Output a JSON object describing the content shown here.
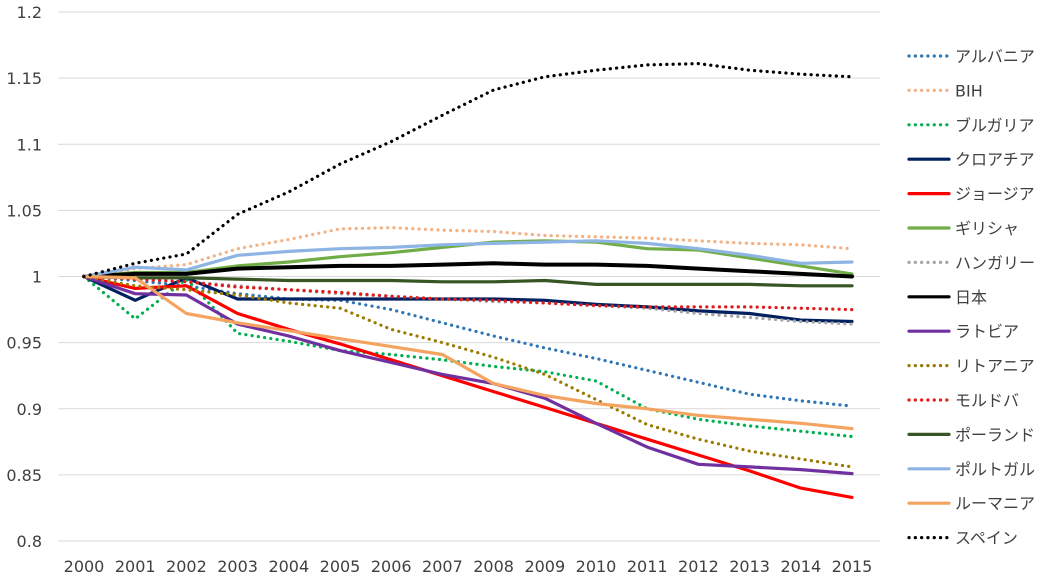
{
  "chart_data": {
    "type": "line",
    "title": "",
    "xlabel": "",
    "ylabel": "",
    "x": [
      "2000",
      "2001",
      "2002",
      "2003",
      "2004",
      "2005",
      "2006",
      "2007",
      "2008",
      "2009",
      "2010",
      "2011",
      "2012",
      "2013",
      "2014",
      "2015"
    ],
    "ylim": [
      0.8,
      1.2
    ],
    "yticks": [
      0.8,
      0.85,
      0.9,
      0.95,
      1,
      1.05,
      1.1,
      1.15,
      1.2
    ],
    "ytick_labels": [
      "0.8",
      "0.85",
      "0.9",
      "0.95",
      "1",
      "1.05",
      "1.1",
      "1.15",
      "1.2"
    ],
    "grid": "horizontal",
    "legend": "right",
    "series": [
      {
        "name": "アルバニア",
        "color": "#2e75b6",
        "style": "dotted",
        "values": [
          1.0,
          0.997,
          0.993,
          0.987,
          0.983,
          0.982,
          0.975,
          0.965,
          0.955,
          0.946,
          0.938,
          0.929,
          0.92,
          0.911,
          0.906,
          0.902
        ]
      },
      {
        "name": "BIH",
        "color": "#f4b183",
        "style": "dotted",
        "values": [
          1.0,
          1.006,
          1.009,
          1.021,
          1.028,
          1.036,
          1.037,
          1.035,
          1.034,
          1.031,
          1.03,
          1.029,
          1.027,
          1.025,
          1.024,
          1.021
        ]
      },
      {
        "name": "ブルガリア",
        "color": "#00b050",
        "style": "dotted",
        "values": [
          1.0,
          0.968,
          0.998,
          0.957,
          0.951,
          0.944,
          0.941,
          0.937,
          0.932,
          0.928,
          0.921,
          0.9,
          0.892,
          0.887,
          0.883,
          0.879
        ]
      },
      {
        "name": "クロアチア",
        "color": "#002060",
        "style": "solid",
        "values": [
          1.0,
          0.982,
          0.999,
          0.983,
          0.983,
          0.983,
          0.983,
          0.983,
          0.983,
          0.982,
          0.979,
          0.977,
          0.974,
          0.972,
          0.967,
          0.966
        ]
      },
      {
        "name": "ジョージア",
        "color": "#ff0000",
        "style": "solid",
        "values": [
          1.0,
          0.991,
          0.993,
          0.972,
          0.96,
          0.949,
          0.937,
          0.925,
          0.913,
          0.901,
          0.889,
          0.877,
          0.865,
          0.853,
          0.84,
          0.833
        ]
      },
      {
        "name": "ギリシャ",
        "color": "#70ad47",
        "style": "solid",
        "values": [
          1.0,
          1.003,
          1.003,
          1.008,
          1.011,
          1.015,
          1.018,
          1.022,
          1.026,
          1.027,
          1.026,
          1.021,
          1.02,
          1.014,
          1.008,
          1.002
        ]
      },
      {
        "name": "ハンガリー",
        "color": "#a5a5a5",
        "style": "dotted",
        "values": [
          1.0,
          0.998,
          0.996,
          0.993,
          0.99,
          0.987,
          0.985,
          0.983,
          0.981,
          0.98,
          0.978,
          0.976,
          0.972,
          0.969,
          0.966,
          0.964
        ]
      },
      {
        "name": "日本",
        "color": "#000000",
        "style": "solid",
        "values": [
          1.0,
          1.002,
          1.002,
          1.006,
          1.007,
          1.008,
          1.008,
          1.009,
          1.01,
          1.009,
          1.009,
          1.008,
          1.006,
          1.004,
          1.002,
          1.0
        ]
      },
      {
        "name": "ラトビア",
        "color": "#7030a0",
        "style": "solid",
        "values": [
          1.0,
          0.987,
          0.986,
          0.964,
          0.955,
          0.944,
          0.935,
          0.926,
          0.919,
          0.908,
          0.889,
          0.871,
          0.858,
          0.856,
          0.854,
          0.851
        ]
      },
      {
        "name": "リトアニア",
        "color": "#9c7a00",
        "style": "dotted",
        "values": [
          1.0,
          0.993,
          0.99,
          0.986,
          0.98,
          0.976,
          0.96,
          0.95,
          0.939,
          0.926,
          0.907,
          0.888,
          0.877,
          0.868,
          0.862,
          0.856
        ]
      },
      {
        "name": "モルドバ",
        "color": "#e31a1c",
        "style": "dotted",
        "values": [
          1.0,
          0.998,
          0.996,
          0.992,
          0.99,
          0.988,
          0.985,
          0.983,
          0.982,
          0.98,
          0.978,
          0.977,
          0.977,
          0.977,
          0.976,
          0.975
        ]
      },
      {
        "name": "ポーランド",
        "color": "#375623",
        "style": "solid",
        "values": [
          1.0,
          0.999,
          0.999,
          0.998,
          0.997,
          0.997,
          0.997,
          0.996,
          0.996,
          0.997,
          0.994,
          0.994,
          0.994,
          0.994,
          0.993,
          0.993
        ]
      },
      {
        "name": "ポルトガル",
        "color": "#8eb4e3",
        "style": "solid",
        "values": [
          1.0,
          1.007,
          1.005,
          1.016,
          1.019,
          1.021,
          1.022,
          1.024,
          1.025,
          1.026,
          1.027,
          1.025,
          1.021,
          1.016,
          1.01,
          1.011
        ]
      },
      {
        "name": "ルーマニア",
        "color": "#f4a460",
        "style": "solid",
        "values": [
          1.0,
          0.999,
          0.972,
          0.965,
          0.959,
          0.953,
          0.947,
          0.941,
          0.919,
          0.91,
          0.904,
          0.9,
          0.895,
          0.892,
          0.889,
          0.885
        ]
      },
      {
        "name": "スペイン",
        "color": "#000000",
        "style": "dotted",
        "values": [
          1.0,
          1.01,
          1.017,
          1.047,
          1.064,
          1.085,
          1.102,
          1.122,
          1.141,
          1.151,
          1.156,
          1.16,
          1.161,
          1.156,
          1.153,
          1.151
        ]
      }
    ]
  }
}
